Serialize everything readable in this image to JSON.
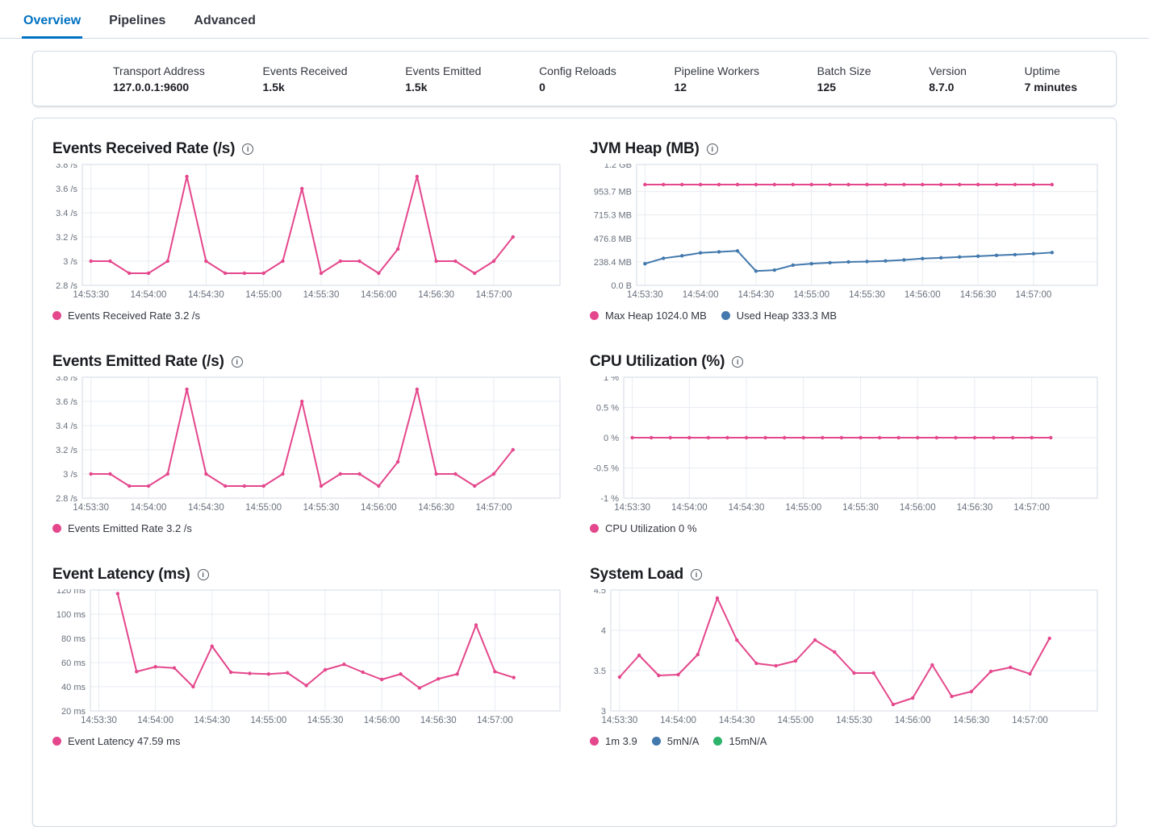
{
  "icons": {
    "info": "i"
  },
  "colors": {
    "accent_blue": "#0071C2",
    "pink": "#E4478C",
    "blue": "#4379AD",
    "green": "#2DB36B",
    "grid": "#E7EBF1",
    "axis_border": "#D3DAE6",
    "tick_text": "#69707D"
  },
  "tabs": [
    {
      "label": "Overview",
      "active": true
    },
    {
      "label": "Pipelines",
      "active": false
    },
    {
      "label": "Advanced",
      "active": false
    }
  ],
  "summary": {
    "stats": [
      {
        "label": "Transport Address",
        "value": "127.0.0.1:9600"
      },
      {
        "label": "Events Received",
        "value": "1.5k"
      },
      {
        "label": "Events Emitted",
        "value": "1.5k"
      },
      {
        "label": "Config Reloads",
        "value": "0"
      },
      {
        "label": "Pipeline Workers",
        "value": "12"
      },
      {
        "label": "Batch Size",
        "value": "125"
      },
      {
        "label": "Version",
        "value": "8.7.0"
      },
      {
        "label": "Uptime",
        "value": "7 minutes"
      }
    ]
  },
  "chart_data": [
    {
      "id": "events-received-rate",
      "title": "Events Received Rate (/s)",
      "type": "line",
      "y_min": 2.8,
      "y_max": 3.8,
      "y_ticks": [
        {
          "v": 3.8,
          "label": "3.8 /s"
        },
        {
          "v": 3.6,
          "label": "3.6 /s"
        },
        {
          "v": 3.4,
          "label": "3.4 /s"
        },
        {
          "v": 3.2,
          "label": "3.2 /s"
        },
        {
          "v": 3,
          "label": "3 /s"
        },
        {
          "v": 2.8,
          "label": "2.8 /s"
        }
      ],
      "x_categories": [
        "14:53:30",
        "14:53:40",
        "14:53:50",
        "14:54:00",
        "14:54:10",
        "14:54:20",
        "14:54:30",
        "14:54:40",
        "14:54:50",
        "14:55:00",
        "14:55:10",
        "14:55:20",
        "14:55:30",
        "14:55:40",
        "14:55:50",
        "14:56:00",
        "14:56:10",
        "14:56:20",
        "14:56:30",
        "14:56:40",
        "14:56:50",
        "14:57:00",
        "14:57:10"
      ],
      "x_tick_every": 3,
      "series": [
        {
          "name": "Events Received Rate",
          "color": "#E4478C",
          "values": [
            3,
            3,
            2.9,
            2.9,
            3,
            3.7,
            3,
            2.9,
            2.9,
            2.9,
            3,
            3.6,
            2.9,
            3,
            3,
            2.9,
            3.1,
            3.7,
            3,
            3,
            2.9,
            3,
            3.2
          ]
        }
      ],
      "legend": [
        {
          "label": "Events Received Rate 3.2 /s",
          "color": "#E4478C"
        }
      ]
    },
    {
      "id": "jvm-heap",
      "title": "JVM Heap (MB)",
      "type": "line",
      "y_min": 0,
      "y_max": 1228.8,
      "y_ticks": [
        {
          "v": 1228.8,
          "label": "1.2 GB"
        },
        {
          "v": 953.7,
          "label": "953.7 MB"
        },
        {
          "v": 715.3,
          "label": "715.3 MB"
        },
        {
          "v": 476.8,
          "label": "476.8 MB"
        },
        {
          "v": 238.4,
          "label": "238.4 MB"
        },
        {
          "v": 0,
          "label": "0.0 B"
        }
      ],
      "x_categories": [
        "14:53:30",
        "14:53:40",
        "14:53:50",
        "14:54:00",
        "14:54:10",
        "14:54:20",
        "14:54:30",
        "14:54:40",
        "14:54:50",
        "14:55:00",
        "14:55:10",
        "14:55:20",
        "14:55:30",
        "14:55:40",
        "14:55:50",
        "14:56:00",
        "14:56:10",
        "14:56:20",
        "14:56:30",
        "14:56:40",
        "14:56:50",
        "14:57:00",
        "14:57:10"
      ],
      "x_tick_every": 3,
      "series": [
        {
          "name": "Max Heap",
          "color": "#E4478C",
          "values": [
            1024,
            1024,
            1024,
            1024,
            1024,
            1024,
            1024,
            1024,
            1024,
            1024,
            1024,
            1024,
            1024,
            1024,
            1024,
            1024,
            1024,
            1024,
            1024,
            1024,
            1024,
            1024,
            1024
          ]
        },
        {
          "name": "Used Heap",
          "color": "#4379AD",
          "values": [
            220,
            275,
            300,
            330,
            340,
            350,
            145,
            155,
            205,
            220,
            230,
            238,
            242,
            248,
            258,
            272,
            280,
            288,
            296,
            305,
            312,
            322,
            333.3
          ]
        }
      ],
      "legend": [
        {
          "label": "Max Heap 1024.0 MB",
          "color": "#E4478C"
        },
        {
          "label": "Used Heap 333.3 MB",
          "color": "#4379AD"
        }
      ]
    },
    {
      "id": "events-emitted-rate",
      "title": "Events Emitted Rate (/s)",
      "type": "line",
      "y_min": 2.8,
      "y_max": 3.8,
      "y_ticks": [
        {
          "v": 3.8,
          "label": "3.8 /s"
        },
        {
          "v": 3.6,
          "label": "3.6 /s"
        },
        {
          "v": 3.4,
          "label": "3.4 /s"
        },
        {
          "v": 3.2,
          "label": "3.2 /s"
        },
        {
          "v": 3,
          "label": "3 /s"
        },
        {
          "v": 2.8,
          "label": "2.8 /s"
        }
      ],
      "x_categories": [
        "14:53:30",
        "14:53:40",
        "14:53:50",
        "14:54:00",
        "14:54:10",
        "14:54:20",
        "14:54:30",
        "14:54:40",
        "14:54:50",
        "14:55:00",
        "14:55:10",
        "14:55:20",
        "14:55:30",
        "14:55:40",
        "14:55:50",
        "14:56:00",
        "14:56:10",
        "14:56:20",
        "14:56:30",
        "14:56:40",
        "14:56:50",
        "14:57:00",
        "14:57:10"
      ],
      "x_tick_every": 3,
      "series": [
        {
          "name": "Events Emitted Rate",
          "color": "#E4478C",
          "values": [
            3,
            3,
            2.9,
            2.9,
            3,
            3.7,
            3,
            2.9,
            2.9,
            2.9,
            3,
            3.6,
            2.9,
            3,
            3,
            2.9,
            3.1,
            3.7,
            3,
            3,
            2.9,
            3,
            3.2
          ]
        }
      ],
      "legend": [
        {
          "label": "Events Emitted Rate 3.2 /s",
          "color": "#E4478C"
        }
      ]
    },
    {
      "id": "cpu-utilization",
      "title": "CPU Utilization (%)",
      "type": "line",
      "y_min": -1,
      "y_max": 1,
      "y_ticks": [
        {
          "v": 1,
          "label": "1 %"
        },
        {
          "v": 0.5,
          "label": "0.5 %"
        },
        {
          "v": 0,
          "label": "0 %"
        },
        {
          "v": -0.5,
          "label": "-0.5 %"
        },
        {
          "v": -1,
          "label": "-1 %"
        }
      ],
      "x_categories": [
        "14:53:30",
        "14:53:40",
        "14:53:50",
        "14:54:00",
        "14:54:10",
        "14:54:20",
        "14:54:30",
        "14:54:40",
        "14:54:50",
        "14:55:00",
        "14:55:10",
        "14:55:20",
        "14:55:30",
        "14:55:40",
        "14:55:50",
        "14:56:00",
        "14:56:10",
        "14:56:20",
        "14:56:30",
        "14:56:40",
        "14:56:50",
        "14:57:00",
        "14:57:10"
      ],
      "x_tick_every": 3,
      "series": [
        {
          "name": "CPU Utilization",
          "color": "#E4478C",
          "values": [
            0,
            0,
            0,
            0,
            0,
            0,
            0,
            0,
            0,
            0,
            0,
            0,
            0,
            0,
            0,
            0,
            0,
            0,
            0,
            0,
            0,
            0,
            0
          ]
        }
      ],
      "legend": [
        {
          "label": "CPU Utilization 0 %",
          "color": "#E4478C"
        }
      ]
    },
    {
      "id": "event-latency",
      "title": "Event Latency (ms)",
      "type": "line",
      "y_min": 20,
      "y_max": 120,
      "y_ticks": [
        {
          "v": 120,
          "label": "120 ms"
        },
        {
          "v": 100,
          "label": "100 ms"
        },
        {
          "v": 80,
          "label": "80 ms"
        },
        {
          "v": 60,
          "label": "60 ms"
        },
        {
          "v": 40,
          "label": "40 ms"
        },
        {
          "v": 20,
          "label": "20 ms"
        }
      ],
      "x_categories": [
        "14:53:30",
        "14:53:40",
        "14:53:50",
        "14:54:00",
        "14:54:10",
        "14:54:20",
        "14:54:30",
        "14:54:40",
        "14:54:50",
        "14:55:00",
        "14:55:10",
        "14:55:20",
        "14:55:30",
        "14:55:40",
        "14:55:50",
        "14:56:00",
        "14:56:10",
        "14:56:20",
        "14:56:30",
        "14:56:40",
        "14:56:50",
        "14:57:00",
        "14:57:10"
      ],
      "x_tick_every": 3,
      "series": [
        {
          "name": "Event Latency",
          "color": "#E4478C",
          "values": [
            null,
            117,
            52.5,
            56.5,
            55.5,
            40,
            73.5,
            52,
            51,
            50.5,
            51.5,
            41,
            54,
            58.5,
            52,
            46,
            50.5,
            39,
            46.5,
            50.5,
            91,
            52.5,
            47.59
          ]
        }
      ],
      "legend": [
        {
          "label": "Event Latency 47.59 ms",
          "color": "#E4478C"
        }
      ]
    },
    {
      "id": "system-load",
      "title": "System Load",
      "type": "line",
      "y_min": 3,
      "y_max": 4.5,
      "y_ticks": [
        {
          "v": 4.5,
          "label": "4.5"
        },
        {
          "v": 4,
          "label": "4"
        },
        {
          "v": 3.5,
          "label": "3.5"
        },
        {
          "v": 3,
          "label": "3"
        }
      ],
      "x_categories": [
        "14:53:30",
        "14:53:40",
        "14:53:50",
        "14:54:00",
        "14:54:10",
        "14:54:20",
        "14:54:30",
        "14:54:40",
        "14:54:50",
        "14:55:00",
        "14:55:10",
        "14:55:20",
        "14:55:30",
        "14:55:40",
        "14:55:50",
        "14:56:00",
        "14:56:10",
        "14:56:20",
        "14:56:30",
        "14:56:40",
        "14:56:50",
        "14:57:00",
        "14:57:10"
      ],
      "x_tick_every": 3,
      "series": [
        {
          "name": "1m",
          "color": "#E4478C",
          "values": [
            3.42,
            3.69,
            3.44,
            3.45,
            3.7,
            4.4,
            3.88,
            3.59,
            3.56,
            3.62,
            3.88,
            3.73,
            3.47,
            3.47,
            3.08,
            3.16,
            3.57,
            3.18,
            3.24,
            3.49,
            3.54,
            3.46,
            3.9
          ]
        }
      ],
      "legend": [
        {
          "label": "1m 3.9",
          "color": "#E4478C"
        },
        {
          "label": "5mN/A",
          "color": "#4379AD"
        },
        {
          "label": "15mN/A",
          "color": "#2DB36B"
        }
      ]
    }
  ]
}
